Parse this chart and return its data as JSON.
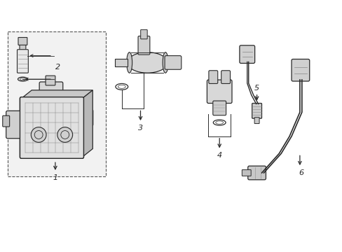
{
  "background_color": "#ffffff",
  "fig_width": 4.89,
  "fig_height": 3.6,
  "dpi": 100,
  "lc": "#2a2a2a",
  "lw": 0.9,
  "fill_light": "#e8e8e8",
  "fill_mid": "#cccccc",
  "label_fs": 8
}
